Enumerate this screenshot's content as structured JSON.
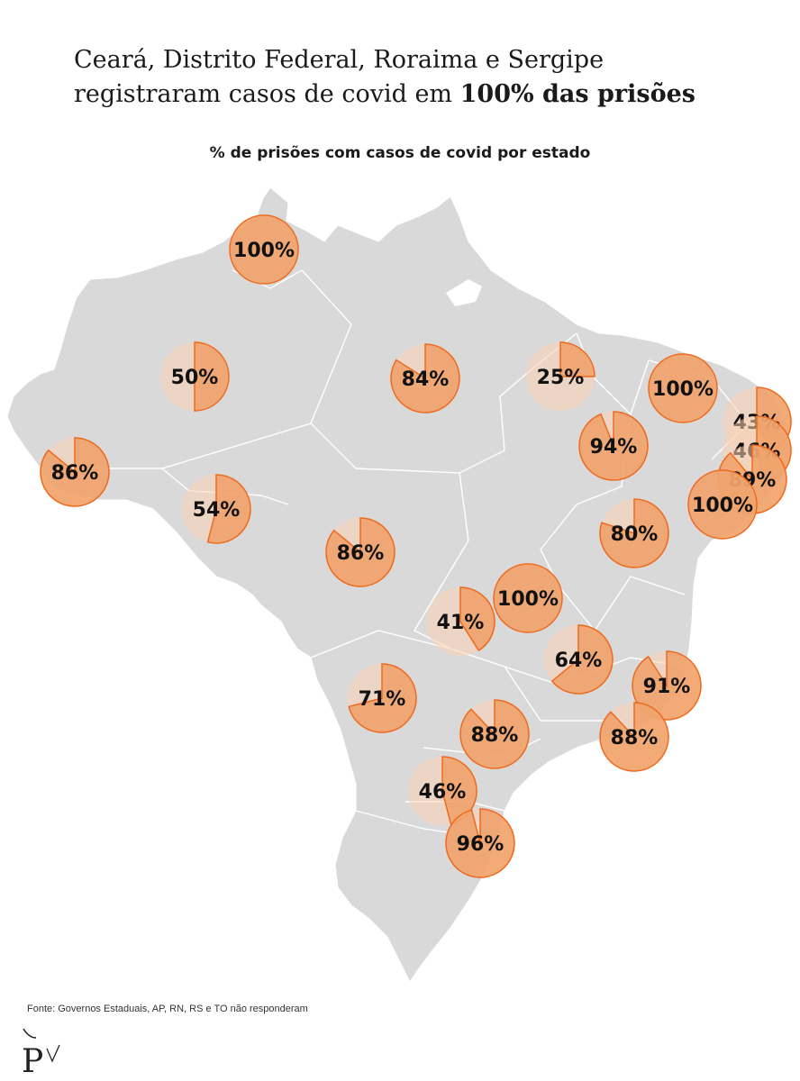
{
  "header": {
    "title_line1": "Ceará, Distrito Federal, Roraima e Sergipe",
    "title_line2_regular": "registraram casos de covid em ",
    "title_line2_bold": "100% das prisões",
    "subtitle": "% de prisões com casos de covid por estado"
  },
  "source": "Fonte: Governos Estaduais, AP, RN, RS e TO não responderam",
  "logo": {
    "glyph": "P",
    "icon": "publisher-logo-icon"
  },
  "colors": {
    "land": "#d9d9d9",
    "border": "#ffffff",
    "pie_fill": "#f0a066",
    "pie_bg": "#fbd2b4",
    "pie_stroke": "#ee6a1e",
    "label": "#111111"
  },
  "chart_data": {
    "type": "pie-map",
    "title": "% de prisões com casos de covid por estado",
    "states": [
      {
        "state": "Roraima",
        "value": 100,
        "label": "100%"
      },
      {
        "state": "Amazonas",
        "value": 50,
        "label": "50%"
      },
      {
        "state": "Pará",
        "value": 84,
        "label": "84%"
      },
      {
        "state": "Maranhão",
        "value": 25,
        "label": "25%"
      },
      {
        "state": "Ceará",
        "value": 100,
        "label": "100%"
      },
      {
        "state": "Paraíba",
        "value": 43,
        "label": "43%"
      },
      {
        "state": "Pernambuco",
        "value": 46,
        "label": "46%"
      },
      {
        "state": "Alagoas",
        "value": 89,
        "label": "89%"
      },
      {
        "state": "Sergipe",
        "value": 100,
        "label": "100%"
      },
      {
        "state": "Piauí",
        "value": 94,
        "label": "94%"
      },
      {
        "state": "Acre",
        "value": 86,
        "label": "86%"
      },
      {
        "state": "Rondônia",
        "value": 54,
        "label": "54%"
      },
      {
        "state": "Mato Grosso",
        "value": 86,
        "label": "86%"
      },
      {
        "state": "Bahia",
        "value": 80,
        "label": "80%"
      },
      {
        "state": "Goiás",
        "value": 41,
        "label": "41%"
      },
      {
        "state": "Distrito Federal",
        "value": 100,
        "label": "100%"
      },
      {
        "state": "Minas Gerais",
        "value": 64,
        "label": "64%"
      },
      {
        "state": "Espírito Santo",
        "value": 91,
        "label": "91%"
      },
      {
        "state": "Mato Grosso do Sul",
        "value": 71,
        "label": "71%"
      },
      {
        "state": "São Paulo",
        "value": 88,
        "label": "88%"
      },
      {
        "state": "Rio de Janeiro",
        "value": 88,
        "label": "88%"
      },
      {
        "state": "Paraná",
        "value": 46,
        "label": "46%"
      },
      {
        "state": "Santa Catarina",
        "value": 96,
        "label": "96%"
      }
    ]
  }
}
